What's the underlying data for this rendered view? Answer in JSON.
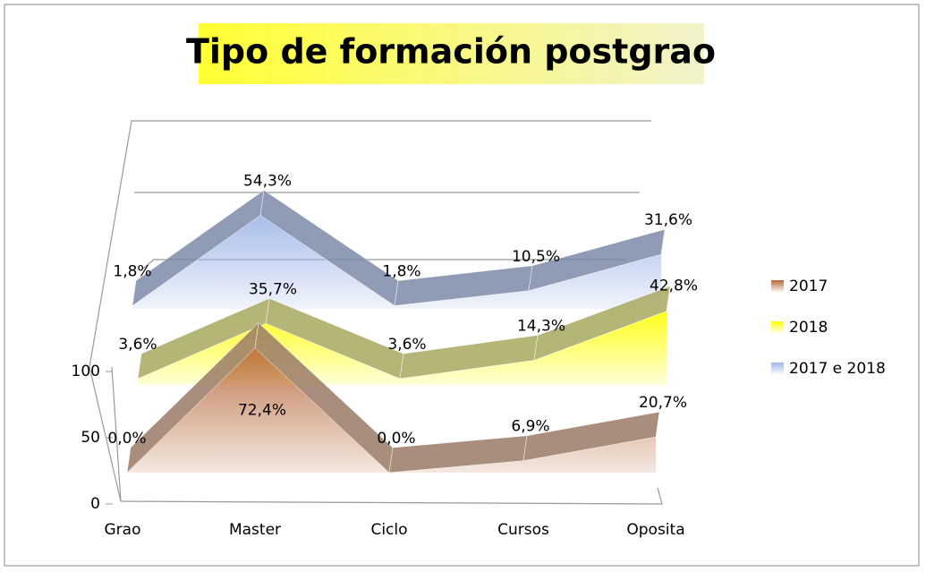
{
  "chart_data": {
    "type": "line3d",
    "title": "Tipo de formación postgrao",
    "categories": [
      "Grao",
      "Master",
      "Ciclo",
      "Cursos",
      "Oposita"
    ],
    "series": [
      {
        "name": "2017",
        "color": "#b8683a",
        "values": [
          0,
          72.4,
          0,
          6.9,
          20.7
        ],
        "value_labels": [
          "0,0%",
          "72,4%",
          "0,0%",
          "6,9%",
          "20,7%"
        ]
      },
      {
        "name": "2018",
        "color": "#ffff00",
        "values": [
          3.6,
          35.7,
          3.6,
          14.3,
          42.8
        ],
        "value_labels": [
          "3,6%",
          "35,7%",
          "3,6%",
          "14,3%",
          "42,8%"
        ]
      },
      {
        "name": "2017 e 2018",
        "color": "#9fb6e8",
        "values": [
          1.8,
          54.3,
          1.8,
          10.5,
          31.6
        ],
        "value_labels": [
          "1,8%",
          "54,3%",
          "1,8%",
          "10,5%",
          "31,6%"
        ]
      }
    ],
    "ylim": [
      0,
      100
    ],
    "yticks": [
      0,
      50,
      100
    ],
    "legend": "right"
  }
}
